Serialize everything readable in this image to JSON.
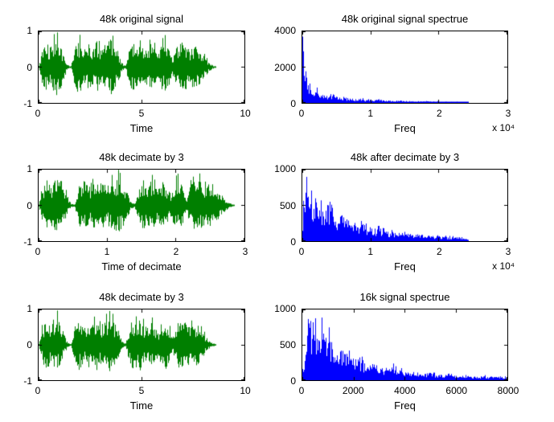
{
  "figure": {
    "background": "#ffffff",
    "axis_color": "#000000"
  },
  "chart_data": [
    {
      "type": "line",
      "render": "waveform",
      "title": "48k original signal",
      "xlabel": "Time",
      "xlim": [
        0,
        10
      ],
      "ylim": [
        -1,
        1
      ],
      "xticks": [
        "0",
        "5",
        "10"
      ],
      "yticks": [
        "-1",
        "0",
        "1"
      ],
      "line_color": "#007f00",
      "signal_end": 8.6,
      "envelope": [
        0.03,
        0.5,
        0.75,
        0.55,
        0.72,
        0.8,
        0.62,
        0.3,
        0.06,
        0.03,
        0.55,
        0.78,
        0.62,
        0.48,
        0.7,
        0.58,
        0.74,
        0.52,
        0.66,
        0.72,
        0.8,
        0.6,
        0.42,
        0.12,
        0.04,
        0.5,
        0.72,
        0.64,
        0.76,
        0.58,
        0.48,
        0.66,
        0.56,
        0.34,
        0.62,
        0.72,
        0.52,
        0.22,
        0.55,
        0.68,
        0.76,
        0.62,
        0.5,
        0.66,
        0.56,
        0.42,
        0.28,
        0.14,
        0.06,
        0.02
      ]
    },
    {
      "type": "line",
      "render": "spectrum",
      "title": "48k original signal spectrue",
      "xlabel": "Freq",
      "x_multiplier": "x 10⁴",
      "xlim": [
        0,
        30000
      ],
      "ylim": [
        0,
        4000
      ],
      "xticks": [
        "0",
        "1",
        "2",
        "3"
      ],
      "yticks": [
        "0",
        "2000",
        "4000"
      ],
      "line_color": "#0000ff",
      "values": [
        2500,
        1600,
        750,
        520,
        610,
        430,
        380,
        340,
        420,
        300,
        260,
        230,
        280,
        210,
        190,
        175,
        160,
        200,
        150,
        140,
        130,
        125,
        160,
        115,
        110,
        105,
        100,
        96,
        120,
        90,
        86,
        83,
        80,
        77,
        95,
        72,
        70,
        67,
        65,
        80,
        62,
        60,
        58,
        56,
        55,
        70,
        52,
        50,
        0,
        0,
        0,
        0,
        0,
        0,
        0,
        0,
        0,
        0,
        0,
        0
      ]
    },
    {
      "type": "line",
      "render": "waveform",
      "title": "48k decimate by 3",
      "xlabel": "Time of decimate",
      "xlim": [
        0,
        3
      ],
      "ylim": [
        -1,
        1
      ],
      "xticks": [
        "0",
        "1",
        "2",
        "3"
      ],
      "yticks": [
        "-1",
        "0",
        "1"
      ],
      "line_color": "#007f00",
      "signal_end": 2.85,
      "envelope": [
        0.03,
        0.5,
        0.75,
        0.55,
        0.72,
        0.8,
        0.62,
        0.3,
        0.06,
        0.03,
        0.55,
        0.78,
        0.62,
        0.48,
        0.7,
        0.58,
        0.74,
        0.52,
        0.66,
        0.72,
        0.8,
        0.6,
        0.42,
        0.12,
        0.04,
        0.5,
        0.72,
        0.64,
        0.76,
        0.58,
        0.48,
        0.66,
        0.56,
        0.34,
        0.62,
        0.72,
        0.52,
        0.22,
        0.55,
        0.68,
        0.76,
        0.62,
        0.5,
        0.66,
        0.56,
        0.42,
        0.28,
        0.14,
        0.06,
        0.02
      ]
    },
    {
      "type": "line",
      "render": "spectrum",
      "title": "48k after decimate by 3",
      "xlabel": "Freq",
      "x_multiplier": "x 10⁴",
      "xlim": [
        0,
        30000
      ],
      "ylim": [
        0,
        1000
      ],
      "xticks": [
        "0",
        "1",
        "2",
        "3"
      ],
      "yticks": [
        "0",
        "500",
        "1000"
      ],
      "line_color": "#0000ff",
      "values": [
        260,
        780,
        640,
        520,
        600,
        460,
        420,
        380,
        470,
        330,
        300,
        270,
        320,
        240,
        220,
        200,
        185,
        230,
        170,
        158,
        148,
        138,
        175,
        125,
        118,
        110,
        104,
        98,
        125,
        90,
        85,
        80,
        76,
        72,
        90,
        66,
        63,
        60,
        58,
        72,
        54,
        52,
        50,
        48,
        47,
        58,
        45,
        44,
        0,
        0,
        0,
        0,
        0,
        0,
        0,
        0,
        0,
        0,
        0,
        0
      ]
    },
    {
      "type": "line",
      "render": "waveform",
      "title": "48k decimate by 3",
      "xlabel": "Time",
      "xlim": [
        0,
        10
      ],
      "ylim": [
        -1,
        1
      ],
      "xticks": [
        "0",
        "5",
        "10"
      ],
      "yticks": [
        "-1",
        "0",
        "1"
      ],
      "line_color": "#007f00",
      "signal_end": 8.6,
      "envelope": [
        0.03,
        0.5,
        0.75,
        0.55,
        0.72,
        0.8,
        0.62,
        0.3,
        0.06,
        0.03,
        0.55,
        0.78,
        0.62,
        0.48,
        0.7,
        0.58,
        0.74,
        0.52,
        0.66,
        0.72,
        0.8,
        0.6,
        0.42,
        0.12,
        0.04,
        0.5,
        0.72,
        0.64,
        0.76,
        0.58,
        0.48,
        0.66,
        0.56,
        0.34,
        0.62,
        0.72,
        0.52,
        0.22,
        0.55,
        0.68,
        0.76,
        0.62,
        0.5,
        0.66,
        0.56,
        0.42,
        0.28,
        0.14,
        0.06,
        0.02
      ]
    },
    {
      "type": "line",
      "render": "spectrum",
      "title": "16k signal spectrue",
      "xlabel": "Freq",
      "xlim": [
        0,
        8000
      ],
      "ylim": [
        0,
        1000
      ],
      "xticks": [
        "0",
        "2000",
        "4000",
        "6000",
        "8000"
      ],
      "yticks": [
        "0",
        "500",
        "1000"
      ],
      "line_color": "#0000ff",
      "values": [
        140,
        420,
        780,
        620,
        700,
        540,
        600,
        470,
        520,
        430,
        380,
        350,
        400,
        310,
        290,
        270,
        255,
        300,
        230,
        215,
        200,
        190,
        230,
        170,
        160,
        150,
        142,
        135,
        160,
        125,
        118,
        112,
        106,
        100,
        120,
        92,
        88,
        84,
        80,
        95,
        74,
        71,
        68,
        65,
        63,
        75,
        58,
        56,
        54,
        52,
        62,
        49,
        47,
        46,
        44,
        43,
        52,
        41,
        40,
        39,
        38,
        46,
        37,
        36
      ]
    }
  ]
}
